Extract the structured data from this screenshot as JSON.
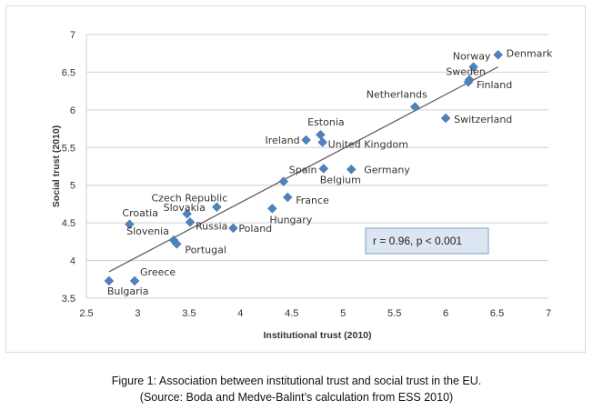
{
  "chart_data": {
    "type": "scatter",
    "xlabel": "Institutional trust (2010)",
    "ylabel": "Social trust (2010)",
    "xlim": [
      2.5,
      7
    ],
    "ylim": [
      3.5,
      7
    ],
    "xticks": [
      2.5,
      3,
      3.5,
      4,
      4.5,
      5,
      5.5,
      6,
      6.5,
      7
    ],
    "xtick_labels": [
      "2.5",
      "3",
      "3.5",
      "4",
      "4.5",
      "5",
      "5.5",
      "6",
      "6.5",
      "7"
    ],
    "yticks": [
      3.5,
      4,
      4.5,
      5,
      5.5,
      6,
      6.5,
      7
    ],
    "ytick_labels": [
      "3.5",
      "4",
      "4.5",
      "5",
      "5.5",
      "6",
      "6.5",
      "7"
    ],
    "grid": "horizontal",
    "points": [
      {
        "label": "Denmark",
        "x": 6.51,
        "y": 6.73
      },
      {
        "label": "Norway",
        "x": 6.27,
        "y": 6.57
      },
      {
        "label": "Sweden",
        "x": 6.23,
        "y": 6.4
      },
      {
        "label": "Finland",
        "x": 6.22,
        "y": 6.37
      },
      {
        "label": "Netherlands",
        "x": 5.7,
        "y": 6.04
      },
      {
        "label": "Switzerland",
        "x": 6.0,
        "y": 5.89
      },
      {
        "label": "Estonia",
        "x": 4.78,
        "y": 5.67
      },
      {
        "label": "Ireland",
        "x": 4.64,
        "y": 5.6
      },
      {
        "label": "United Kingdom",
        "x": 4.8,
        "y": 5.57
      },
      {
        "label": "Germany",
        "x": 5.08,
        "y": 5.21
      },
      {
        "label": "Belgium",
        "x": 4.81,
        "y": 5.22
      },
      {
        "label": "Spain",
        "x": 4.42,
        "y": 5.05
      },
      {
        "label": "France",
        "x": 4.46,
        "y": 4.84
      },
      {
        "label": "Hungary",
        "x": 4.31,
        "y": 4.69
      },
      {
        "label": "Czech Republic",
        "x": 3.77,
        "y": 4.71
      },
      {
        "label": "Slovakia",
        "x": 3.48,
        "y": 4.62
      },
      {
        "label": "Russia",
        "x": 3.51,
        "y": 4.51
      },
      {
        "label": "Croatia",
        "x": 2.92,
        "y": 4.48
      },
      {
        "label": "Poland",
        "x": 3.93,
        "y": 4.43
      },
      {
        "label": "Slovenia",
        "x": 3.35,
        "y": 4.27
      },
      {
        "label": "Portugal",
        "x": 3.38,
        "y": 4.22
      },
      {
        "label": "Greece",
        "x": 2.97,
        "y": 3.73
      },
      {
        "label": "Bulgaria",
        "x": 2.72,
        "y": 3.73
      }
    ],
    "trendline": {
      "x": [
        2.72,
        6.51
      ],
      "y": [
        3.85,
        6.57
      ]
    },
    "annotation": "r = 0.96, p < 0.001"
  },
  "caption": {
    "line1": "Figure 1: Association between institutional trust and social trust in the EU.",
    "line2": "(Source: Boda and Medve-Balint’s calculation from ESS 2010)"
  }
}
